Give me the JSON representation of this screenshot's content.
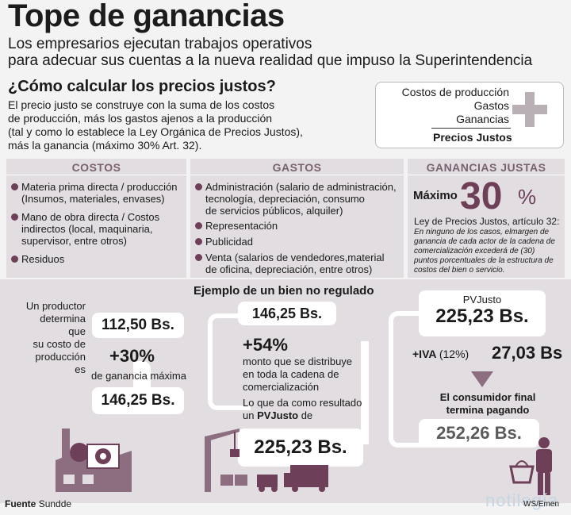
{
  "header": {
    "title": "Tope de ganancias",
    "subtitle_line1": "Los empresarios ejecutan trabajos operativos",
    "subtitle_line2": "para adecuar sus cuentas a la nueva realidad que impuso la Superintendencia"
  },
  "intro": {
    "question": "¿Cómo calcular los precios justos?",
    "lines": [
      "El precio justo se construye con la suma de los costos",
      "de producción, más los gastos ajenos a la producción",
      "(tal y como lo establece la Ley Orgánica de Precios Justos),",
      "más la ganancia (máximo 30% Art. 32)."
    ]
  },
  "formula": {
    "items": [
      "Costos de producción",
      "Gastos",
      "Ganancias"
    ],
    "total": "Precios Justos"
  },
  "costos": {
    "heading": "COSTOS",
    "items": [
      {
        "first": "Materia prima directa / producción",
        "rest": [
          "(Insumos, materiales, envases)"
        ]
      },
      {
        "first": "Mano de obra directa / Costos",
        "rest": [
          "indirectos (local, maquinaria,",
          "supervisor, entre otros)"
        ]
      },
      {
        "first": "Residuos",
        "rest": []
      }
    ]
  },
  "gastos": {
    "heading": "GASTOS",
    "items": [
      {
        "first": "Administración (salario de administración,",
        "rest": [
          "tecnología, depreciación, consumo",
          "de servicios públicos, alquiler)"
        ]
      },
      {
        "first": "Representación",
        "rest": []
      },
      {
        "first": "Publicidad",
        "rest": []
      },
      {
        "first": "Venta (salarios de vendedores,material",
        "rest": [
          "de oficina, depreciación, entre otros)"
        ]
      }
    ]
  },
  "ganancias": {
    "heading": "GANANCIAS JUSTAS",
    "maximo": "Máximo",
    "value": "30",
    "sign": "%",
    "ley": "Ley de Precios Justos, artículo 32:",
    "ley_text": "En ninguno de los casos, elmargen de ganancia de cada actor de la cadena de comercialización excederá de (30) puntos porcentuales de la estructura de costos del bien o servicio."
  },
  "ejemplo": {
    "title": "Ejemplo de un bien no regulado",
    "productor_text": [
      "Un productor",
      "determina que",
      "su costo de",
      "producción es"
    ],
    "costo": "112,50 Bs.",
    "plus30": "+30%",
    "ganancia_maxima": "de ganancia máxima",
    "resultado1": "146,25 Bs.",
    "mid_value": "146,25 Bs.",
    "plus54": "+54%",
    "monto_text": [
      "monto que se distribuye",
      "en toda la cadena de",
      "comercialización"
    ],
    "resultado_text": "Lo que da como resultado",
    "un": "un ",
    "pvjusto_bold": "PVJusto",
    "de": " de",
    "resultado2": "225,23 Bs.",
    "pvjusto_label": "PVJusto",
    "pvjusto_value": "225,23 Bs.",
    "iva_label": "+IVA",
    "iva_pct": "(12%)",
    "iva_value": "27,03 Bs",
    "consumidor": [
      "El consumidor final",
      "termina pagando"
    ],
    "final_value": "252,26 Bs."
  },
  "footer": {
    "fuente_label": "Fuente",
    "fuente": "Sundde",
    "credit": "WS/Emen",
    "watermark": "notilegía"
  },
  "colors": {
    "accent": "#6e3f58",
    "band": "#e2dde0",
    "heading": "#7a6270"
  }
}
